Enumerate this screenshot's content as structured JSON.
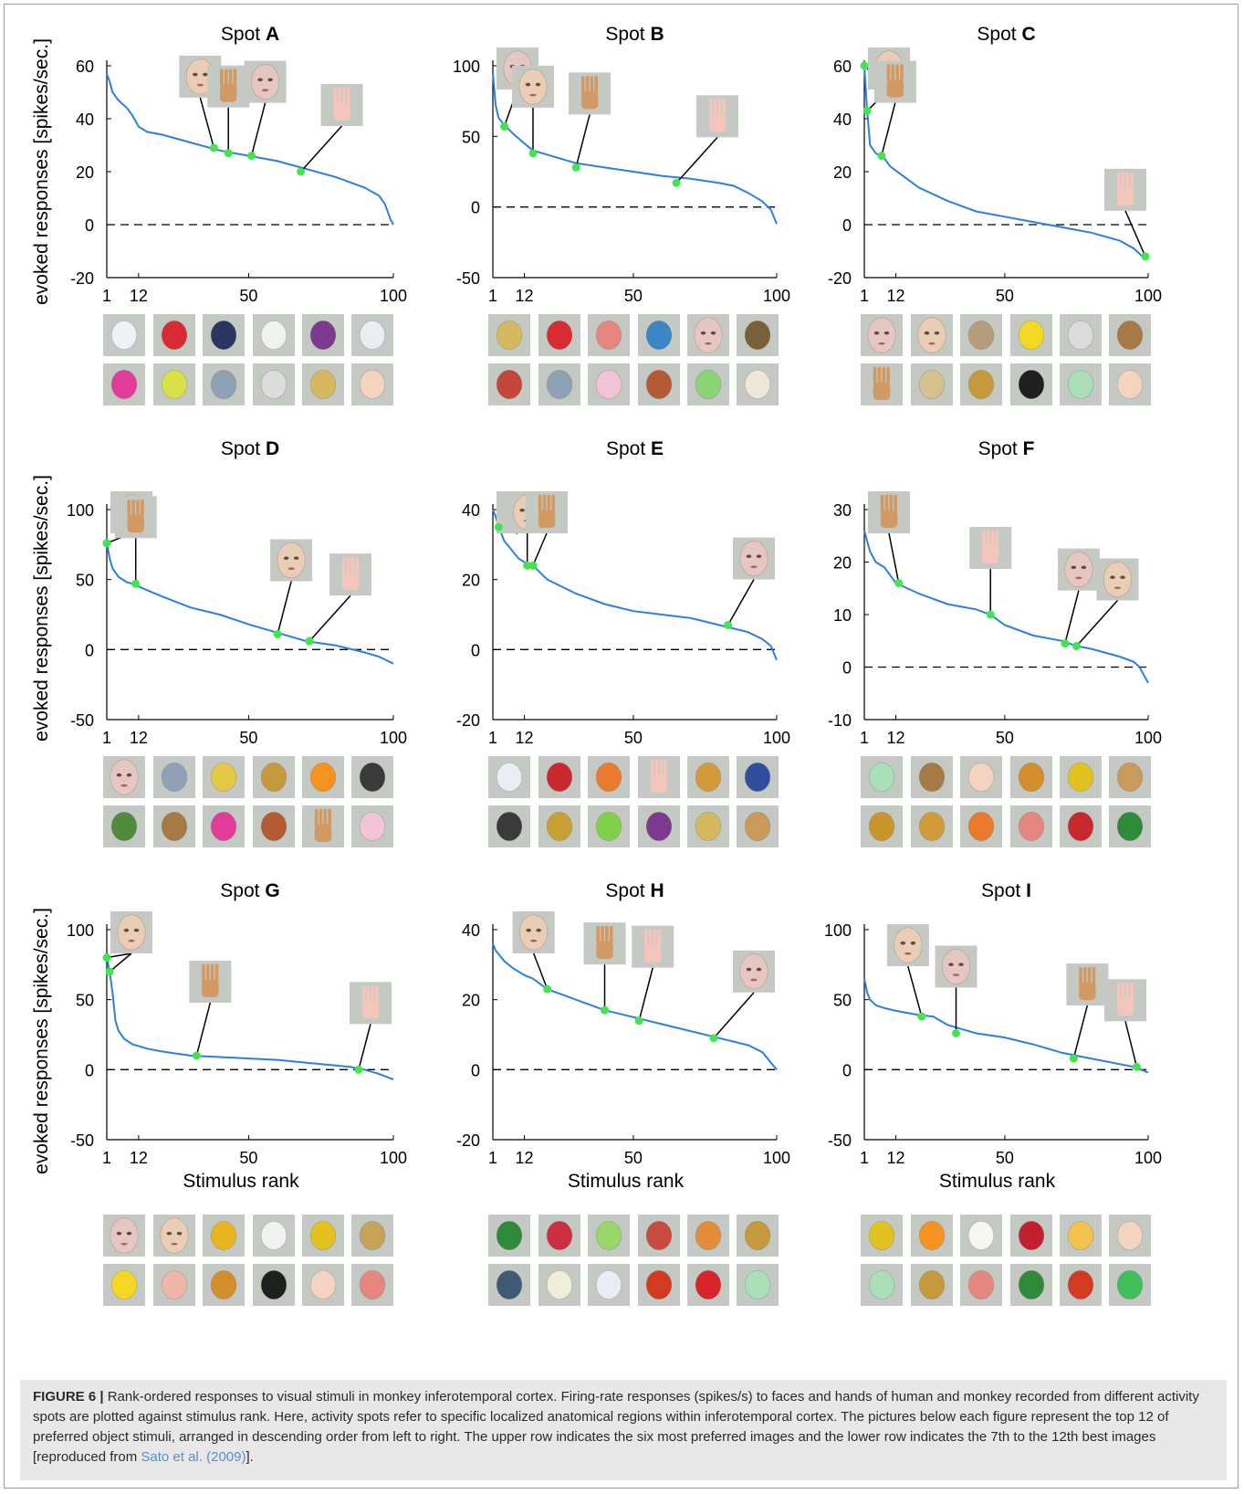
{
  "figure": {
    "ylabel": "evoked responses [spikes/sec.]",
    "xlabel": "Stimulus rank",
    "colors": {
      "curve": "#2b7fe0",
      "marker": "#44e44e",
      "thumb_bg": "#c4c9c3",
      "zero_line": "#000000"
    }
  },
  "chart_data": [
    {
      "type": "line",
      "title_prefix": "Spot",
      "title_letter": "A",
      "ylim": [
        -20,
        60
      ],
      "yticks": [
        -20,
        0,
        20,
        40,
        60
      ],
      "xticks": [
        1,
        12,
        50,
        100
      ],
      "x": [
        1,
        2,
        3,
        5,
        8,
        10,
        12,
        15,
        20,
        30,
        40,
        50,
        60,
        70,
        80,
        85,
        90,
        95,
        97,
        98,
        99,
        100
      ],
      "values": [
        57,
        54,
        50,
        47,
        44,
        41,
        37,
        35,
        34,
        31,
        28,
        26,
        24,
        21,
        18,
        16,
        14,
        11,
        8,
        5,
        2,
        0
      ],
      "markers": [
        {
          "rank": 38,
          "value": 29,
          "icon": "human-face-icon"
        },
        {
          "rank": 43,
          "value": 27,
          "icon": "monkey-hand-icon"
        },
        {
          "rank": 51,
          "value": 26,
          "icon": "monkey-face-icon"
        },
        {
          "rank": 68,
          "value": 20,
          "icon": "human-hand-icon"
        }
      ],
      "top12_row1": [
        "bottle-icon",
        "gas-can-icon",
        "cat-toy-icon",
        "dog-toy-icon",
        "eggplant-icon",
        "spray-bottle-icon"
      ],
      "top12_row2": [
        "pink-toy-icon",
        "chick-toy-icon",
        "chair-icon",
        "ceramic-dog-icon",
        "padlock-icon",
        "doll-icon"
      ]
    },
    {
      "type": "line",
      "title_prefix": "Spot",
      "title_letter": "B",
      "ylim": [
        -50,
        100
      ],
      "yticks": [
        -50,
        0,
        50,
        100
      ],
      "xticks": [
        1,
        12,
        50,
        100
      ],
      "x": [
        1,
        2,
        3,
        5,
        8,
        12,
        15,
        20,
        30,
        40,
        50,
        60,
        70,
        80,
        85,
        90,
        95,
        98,
        100
      ],
      "values": [
        95,
        72,
        63,
        58,
        52,
        45,
        40,
        37,
        31,
        28,
        25,
        22,
        20,
        17,
        15,
        10,
        4,
        -2,
        -12
      ],
      "markers": [
        {
          "rank": 5,
          "value": 57,
          "icon": "monkey-face-icon"
        },
        {
          "rank": 15,
          "value": 38,
          "icon": "human-face-icon"
        },
        {
          "rank": 30,
          "value": 28,
          "icon": "monkey-hand-icon"
        },
        {
          "rank": 65,
          "value": 17,
          "icon": "human-hand-icon"
        }
      ],
      "top12_row1": [
        "padlock-icon",
        "gas-can-icon",
        "peach-icon",
        "tape-dispenser-icon",
        "monkey-face-icon",
        "boots-icon"
      ],
      "top12_row2": [
        "paintbrush-icon",
        "chair-icon",
        "flower-icon",
        "persimmon-icon",
        "pepper-icon",
        "shell-icon"
      ]
    },
    {
      "type": "line",
      "title_prefix": "Spot",
      "title_letter": "C",
      "ylim": [
        -20,
        60
      ],
      "yticks": [
        -20,
        0,
        20,
        40,
        60
      ],
      "xticks": [
        1,
        12,
        50,
        100
      ],
      "x": [
        1,
        2,
        3,
        5,
        8,
        10,
        15,
        20,
        30,
        40,
        50,
        60,
        70,
        80,
        90,
        95,
        98,
        100
      ],
      "values": [
        60,
        43,
        30,
        27,
        25,
        22,
        18,
        14,
        9,
        5,
        3,
        1,
        -1,
        -3,
        -6,
        -9,
        -12,
        -13
      ],
      "markers": [
        {
          "rank": 1,
          "value": 60,
          "icon": "monkey-face-icon"
        },
        {
          "rank": 2,
          "value": 43,
          "icon": "human-face-icon"
        },
        {
          "rank": 7,
          "value": 26,
          "icon": "monkey-hand-icon"
        },
        {
          "rank": 99,
          "value": -12,
          "icon": "human-hand-icon"
        }
      ],
      "top12_row1": [
        "monkey-face-icon",
        "human-face-icon",
        "shells-icon",
        "duck-toy-icon",
        "ceramic-dog-icon",
        "monkey-figure-icon"
      ],
      "top12_row2": [
        "monkey-hand-icon",
        "onions-icon",
        "onion-icon",
        "mouse-toy-icon",
        "melon-icon",
        "doll-icon"
      ]
    },
    {
      "type": "line",
      "title_prefix": "Spot",
      "title_letter": "D",
      "ylim": [
        -50,
        100
      ],
      "yticks": [
        -50,
        0,
        50,
        100
      ],
      "xticks": [
        1,
        12,
        50,
        100
      ],
      "x": [
        1,
        2,
        3,
        5,
        8,
        10,
        12,
        20,
        30,
        40,
        50,
        60,
        70,
        80,
        90,
        95,
        100
      ],
      "values": [
        76,
        65,
        58,
        52,
        48,
        47,
        45,
        38,
        30,
        25,
        18,
        12,
        6,
        3,
        -2,
        -5,
        -10
      ],
      "markers": [
        {
          "rank": 1,
          "value": 76,
          "icon": "monkey-face-icon"
        },
        {
          "rank": 11,
          "value": 47,
          "icon": "monkey-hand-icon"
        },
        {
          "rank": 60,
          "value": 11,
          "icon": "human-face-icon"
        },
        {
          "rank": 71,
          "value": 6,
          "icon": "human-hand-icon"
        }
      ],
      "top12_row1": [
        "monkey-face-icon",
        "chair-icon",
        "corn-icon",
        "onion-icon",
        "orange-icon",
        "zebra-icon"
      ],
      "top12_row2": [
        "broccoli-icon",
        "monkey-figure-icon",
        "pink-toy-icon",
        "persimmon-icon",
        "monkey-hand-icon",
        "flower-icon"
      ]
    },
    {
      "type": "line",
      "title_prefix": "Spot",
      "title_letter": "E",
      "ylim": [
        -20,
        40
      ],
      "yticks": [
        -20,
        0,
        20,
        40
      ],
      "xticks": [
        1,
        12,
        50,
        100
      ],
      "x": [
        1,
        2,
        3,
        5,
        8,
        10,
        12,
        15,
        20,
        30,
        40,
        50,
        60,
        70,
        80,
        90,
        95,
        98,
        100
      ],
      "values": [
        40,
        38,
        35,
        31,
        28,
        26,
        25,
        24,
        20,
        16,
        13,
        11,
        10,
        9,
        7,
        5,
        3,
        1,
        -3
      ],
      "markers": [
        {
          "rank": 3,
          "value": 35,
          "icon": "human-hand-icon"
        },
        {
          "rank": 13,
          "value": 24,
          "icon": "human-face-icon"
        },
        {
          "rank": 15,
          "value": 24,
          "icon": "monkey-hand-icon"
        },
        {
          "rank": 83,
          "value": 7,
          "icon": "monkey-face-icon"
        }
      ],
      "top12_row1": [
        "spray-bottle-icon",
        "fire-extinguisher-icon",
        "carrot-icon",
        "human-hand-icon",
        "giraffe-icon",
        "blue-bottle-icon"
      ],
      "top12_row2": [
        "zebra-icon",
        "fork-icon",
        "frog-toy-icon",
        "eggplant-icon",
        "padlock-icon",
        "camel-icon"
      ]
    },
    {
      "type": "line",
      "title_prefix": "Spot",
      "title_letter": "F",
      "ylim": [
        -10,
        30
      ],
      "yticks": [
        -10,
        0,
        10,
        20,
        30
      ],
      "xticks": [
        1,
        12,
        50,
        100
      ],
      "x": [
        1,
        2,
        3,
        5,
        8,
        12,
        20,
        30,
        40,
        45,
        50,
        60,
        70,
        75,
        80,
        90,
        95,
        97,
        98,
        100
      ],
      "values": [
        26,
        24,
        22,
        20,
        19,
        16,
        14,
        12,
        11,
        10,
        8,
        6,
        5,
        4,
        3.5,
        2,
        1,
        0,
        -1,
        -3
      ],
      "markers": [
        {
          "rank": 13,
          "value": 16,
          "icon": "monkey-hand-icon"
        },
        {
          "rank": 45,
          "value": 10,
          "icon": "human-hand-icon"
        },
        {
          "rank": 71,
          "value": 4.5,
          "icon": "monkey-face-icon"
        },
        {
          "rank": 75,
          "value": 4,
          "icon": "human-face-icon"
        }
      ],
      "top12_row1": [
        "melon-icon",
        "monkey-figure-icon",
        "doll-icon",
        "tiger-figure-icon",
        "pumpkin-icon",
        "camel-icon"
      ],
      "top12_row2": [
        "pineapple-icon",
        "giraffe-icon",
        "carrot-icon",
        "peach-icon",
        "fire-extinguisher-icon",
        "watermelon-icon"
      ]
    },
    {
      "type": "line",
      "title_prefix": "Spot",
      "title_letter": "G",
      "ylim": [
        -50,
        100
      ],
      "yticks": [
        -50,
        0,
        50,
        100
      ],
      "xticks": [
        1,
        12,
        50,
        100
      ],
      "x": [
        1,
        2,
        3,
        4,
        5,
        7,
        10,
        15,
        20,
        30,
        40,
        50,
        60,
        70,
        80,
        85,
        90,
        95,
        100
      ],
      "values": [
        80,
        70,
        55,
        35,
        28,
        22,
        18,
        15,
        13,
        10,
        9,
        8,
        7,
        5,
        3,
        2,
        0,
        -3,
        -7
      ],
      "markers": [
        {
          "rank": 1,
          "value": 80,
          "icon": "monkey-face-icon"
        },
        {
          "rank": 2,
          "value": 70,
          "icon": "human-face-icon"
        },
        {
          "rank": 32,
          "value": 10,
          "icon": "monkey-hand-icon"
        },
        {
          "rank": 88,
          "value": 0,
          "icon": "human-hand-icon"
        }
      ],
      "top12_row1": [
        "monkey-face-icon",
        "human-face-icon",
        "bear-toy-icon",
        "dog-toy-icon",
        "pumpkin-icon",
        "giraffe-figure-icon"
      ],
      "top12_row2": [
        "duck-toy-icon",
        "piggy-bank-icon",
        "tiger-figure-icon",
        "mouse-toy-icon",
        "doll-icon",
        "peach-icon"
      ]
    },
    {
      "type": "line",
      "title_prefix": "Spot",
      "title_letter": "H",
      "ylim": [
        -20,
        40
      ],
      "yticks": [
        -20,
        0,
        20,
        40
      ],
      "xticks": [
        1,
        12,
        50,
        100
      ],
      "x": [
        1,
        2,
        3,
        5,
        8,
        12,
        15,
        20,
        30,
        40,
        50,
        60,
        70,
        80,
        90,
        95,
        98,
        100
      ],
      "values": [
        36,
        34,
        33,
        31,
        29,
        27,
        26,
        23,
        20,
        17,
        15,
        13,
        11,
        9,
        7,
        5,
        2,
        0
      ],
      "markers": [
        {
          "rank": 20,
          "value": 23,
          "icon": "human-face-icon"
        },
        {
          "rank": 40,
          "value": 17,
          "icon": "monkey-hand-icon"
        },
        {
          "rank": 52,
          "value": 14,
          "icon": "human-hand-icon"
        },
        {
          "rank": 78,
          "value": 9,
          "icon": "monkey-face-icon"
        }
      ],
      "top12_row1": [
        "watermelon-icon",
        "parrot-icon",
        "starfruit-icon",
        "clown-toy-icon",
        "bell-pepper-icon",
        "onion-icon"
      ],
      "top12_row2": [
        "bird-icon",
        "owl-figure-icon",
        "spray-bottle-icon",
        "ladybug-icon",
        "red-pepper-icon",
        "melon-icon"
      ]
    },
    {
      "type": "line",
      "title_prefix": "Spot",
      "title_letter": "I",
      "ylim": [
        -50,
        100
      ],
      "yticks": [
        -50,
        0,
        50,
        100
      ],
      "xticks": [
        1,
        12,
        50,
        100
      ],
      "x": [
        1,
        2,
        3,
        5,
        8,
        12,
        20,
        25,
        30,
        35,
        40,
        50,
        60,
        70,
        80,
        90,
        95,
        100
      ],
      "values": [
        65,
        55,
        50,
        46,
        44,
        42,
        39,
        38,
        32,
        29,
        26,
        23,
        18,
        12,
        8,
        4,
        2,
        -2
      ],
      "markers": [
        {
          "rank": 21,
          "value": 38,
          "icon": "human-face-icon"
        },
        {
          "rank": 33,
          "value": 26,
          "icon": "monkey-face-icon"
        },
        {
          "rank": 74,
          "value": 8,
          "icon": "monkey-hand-icon"
        },
        {
          "rank": 96,
          "value": 2,
          "icon": "human-hand-icon"
        }
      ],
      "top12_row1": [
        "pumpkin-icon",
        "orange-icon",
        "daisy-icon",
        "cherries-icon",
        "apple-icon",
        "doll-icon"
      ],
      "top12_row2": [
        "melon-icon",
        "onion-icon",
        "peach-icon",
        "watermelon-icon",
        "ladybug-icon",
        "clover-icon"
      ]
    }
  ],
  "caption": {
    "label": "FIGURE 6 |",
    "text": " Rank-ordered responses to visual stimuli in monkey inferotemporal cortex. Firing-rate responses (spikes/s) to faces and hands of human and monkey recorded from different activity spots are plotted against stimulus rank. Here, activity spots refer to specific localized anatomical regions within inferotemporal cortex. The pictures below each figure represent the top 12 of preferred object stimuli, arranged in descending order from left to right. The upper row indicates the six most preferred images and the lower row indicates the 7th to the 12th best images [reproduced from ",
    "ref": "Sato et al. (2009)",
    "end": "]."
  }
}
